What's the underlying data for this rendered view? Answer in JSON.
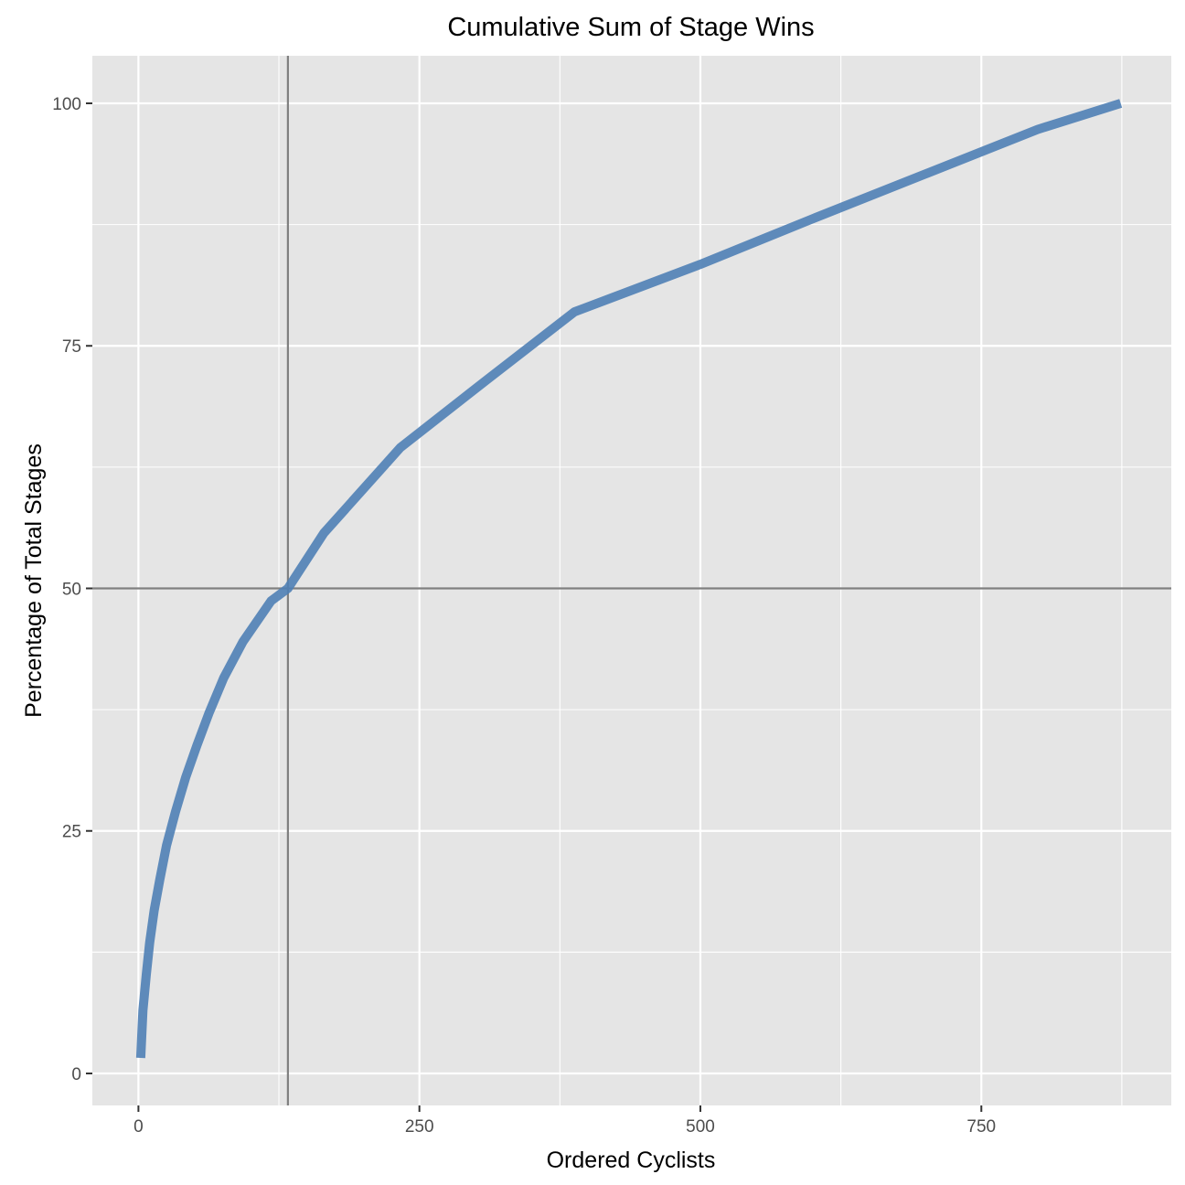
{
  "chart_data": {
    "type": "line",
    "title": "Cumulative Sum of Stage Wins",
    "xlabel": "Ordered Cyclists",
    "ylabel": "Percentage of Total Stages",
    "xlim": [
      -41,
      919
    ],
    "ylim": [
      -3.3,
      104.9
    ],
    "x_ticks": [
      0,
      250,
      500,
      750
    ],
    "y_ticks": [
      0,
      25,
      50,
      75,
      100
    ],
    "grid": true,
    "legend": "none",
    "reference_lines": {
      "vertical_x": 133,
      "horizontal_y": 50
    },
    "colors": {
      "panel": "#e5e5e5",
      "grid": "#ffffff",
      "line": "#4f7fb5",
      "reference": "#7f7f7f"
    },
    "series": [
      {
        "x": [
          2,
          4,
          7,
          10,
          14,
          19,
          25,
          33,
          42,
          52,
          63,
          76,
          93,
          118,
          133,
          165,
          233,
          310,
          388,
          500,
          600,
          700,
          800,
          874
        ],
        "y": [
          1.6,
          6.5,
          10.2,
          13.5,
          16.8,
          20.0,
          23.5,
          27.0,
          30.5,
          33.8,
          37.2,
          40.8,
          44.5,
          48.7,
          50.0,
          55.7,
          64.5,
          71.5,
          78.5,
          83.4,
          88.1,
          92.7,
          97.3,
          100
        ]
      }
    ]
  }
}
